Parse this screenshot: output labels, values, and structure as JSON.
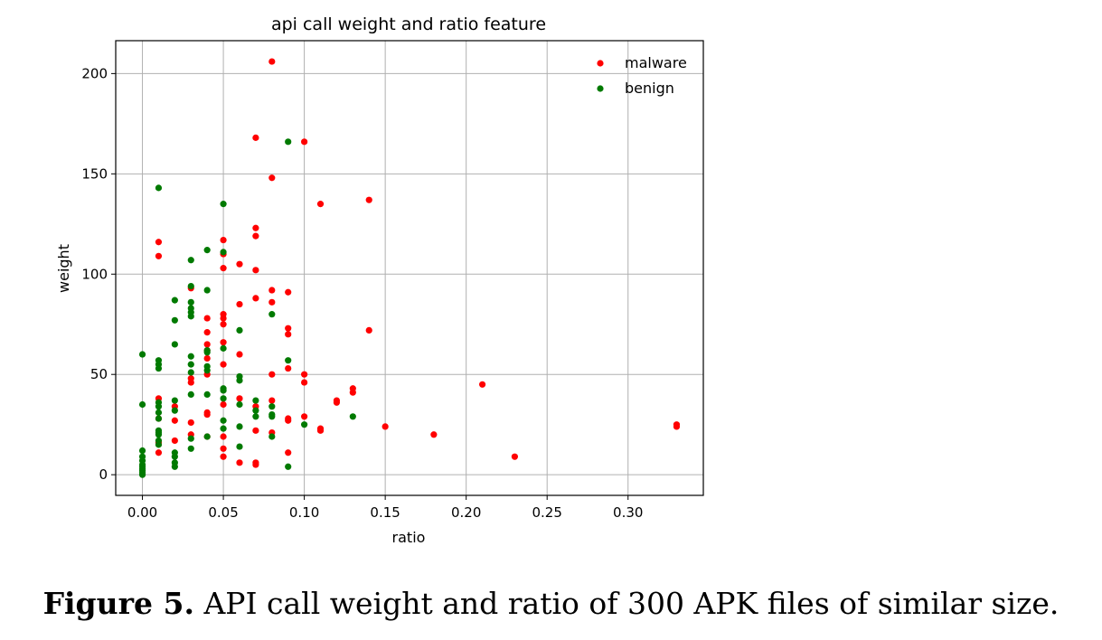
{
  "caption": {
    "label": "Figure 5.",
    "text": "API call weight and ratio of 300 APK files of similar size."
  },
  "chart_data": {
    "type": "scatter",
    "title": "api call weight and ratio feature",
    "xlabel": "ratio",
    "ylabel": "weight",
    "xlim": [
      -0.0165,
      0.3465
    ],
    "ylim": [
      -10.3,
      216.4
    ],
    "xticks": [
      0.0,
      0.05,
      0.1,
      0.15,
      0.2,
      0.25,
      0.3
    ],
    "xtick_labels": [
      "0.00",
      "0.05",
      "0.10",
      "0.15",
      "0.20",
      "0.25",
      "0.30"
    ],
    "yticks": [
      0,
      50,
      100,
      150,
      200
    ],
    "ytick_labels": [
      "0",
      "50",
      "100",
      "150",
      "200"
    ],
    "grid": true,
    "legend": "top-right",
    "series": [
      {
        "name": "malware",
        "color": "#ff0000",
        "points": [
          [
            0.08,
            206
          ],
          [
            0.07,
            168
          ],
          [
            0.1,
            166
          ],
          [
            0.08,
            148
          ],
          [
            0.14,
            137
          ],
          [
            0.11,
            135
          ],
          [
            0.07,
            123
          ],
          [
            0.07,
            119
          ],
          [
            0.05,
            117
          ],
          [
            0.01,
            116
          ],
          [
            0.05,
            110
          ],
          [
            0.01,
            109
          ],
          [
            0.06,
            105
          ],
          [
            0.05,
            103
          ],
          [
            0.07,
            102
          ],
          [
            0.08,
            92
          ],
          [
            0.09,
            91
          ],
          [
            0.07,
            88
          ],
          [
            0.08,
            86
          ],
          [
            0.06,
            85
          ],
          [
            0.03,
            93
          ],
          [
            0.05,
            80
          ],
          [
            0.05,
            78
          ],
          [
            0.04,
            78
          ],
          [
            0.05,
            75
          ],
          [
            0.09,
            73
          ],
          [
            0.14,
            72
          ],
          [
            0.04,
            71
          ],
          [
            0.09,
            70
          ],
          [
            0.05,
            66
          ],
          [
            0.04,
            65
          ],
          [
            0.04,
            62
          ],
          [
            0.06,
            60
          ],
          [
            0.04,
            58
          ],
          [
            0.05,
            55
          ],
          [
            0.09,
            53
          ],
          [
            0.08,
            50
          ],
          [
            0.1,
            50
          ],
          [
            0.04,
            50
          ],
          [
            0.03,
            48
          ],
          [
            0.1,
            46
          ],
          [
            0.03,
            46
          ],
          [
            0.21,
            45
          ],
          [
            0.13,
            43
          ],
          [
            0.13,
            41
          ],
          [
            0.06,
            38
          ],
          [
            0.01,
            38
          ],
          [
            0.08,
            37
          ],
          [
            0.12,
            37
          ],
          [
            0.12,
            36
          ],
          [
            0.05,
            35
          ],
          [
            0.07,
            34
          ],
          [
            0.02,
            34
          ],
          [
            0.04,
            31
          ],
          [
            0.04,
            30
          ],
          [
            0.1,
            29
          ],
          [
            0.09,
            28
          ],
          [
            0.01,
            28
          ],
          [
            0.02,
            27
          ],
          [
            0.09,
            27
          ],
          [
            0.03,
            26
          ],
          [
            0.33,
            25
          ],
          [
            0.33,
            24
          ],
          [
            0.15,
            24
          ],
          [
            0.11,
            23
          ],
          [
            0.11,
            22
          ],
          [
            0.07,
            22
          ],
          [
            0.08,
            21
          ],
          [
            0.18,
            20
          ],
          [
            0.03,
            20
          ],
          [
            0.04,
            19
          ],
          [
            0.05,
            19
          ],
          [
            0.02,
            17
          ],
          [
            0.01,
            16
          ],
          [
            0.05,
            13
          ],
          [
            0.01,
            11
          ],
          [
            0.09,
            11
          ],
          [
            0.05,
            9
          ],
          [
            0.23,
            9
          ],
          [
            0.06,
            6
          ],
          [
            0.07,
            6
          ],
          [
            0.07,
            5
          ]
        ]
      },
      {
        "name": "benign",
        "color": "#007a00",
        "points": [
          [
            0.09,
            166
          ],
          [
            0.01,
            143
          ],
          [
            0.05,
            135
          ],
          [
            0.04,
            112
          ],
          [
            0.05,
            111
          ],
          [
            0.03,
            107
          ],
          [
            0.03,
            94
          ],
          [
            0.04,
            92
          ],
          [
            0.02,
            87
          ],
          [
            0.03,
            86
          ],
          [
            0.03,
            83
          ],
          [
            0.03,
            81
          ],
          [
            0.03,
            79
          ],
          [
            0.08,
            80
          ],
          [
            0.02,
            77
          ],
          [
            0.06,
            72
          ],
          [
            0.02,
            65
          ],
          [
            0.05,
            63
          ],
          [
            0.04,
            62
          ],
          [
            0.04,
            61
          ],
          [
            0.0,
            60
          ],
          [
            0.03,
            59
          ],
          [
            0.09,
            57
          ],
          [
            0.01,
            57
          ],
          [
            0.01,
            55
          ],
          [
            0.03,
            55
          ],
          [
            0.04,
            54
          ],
          [
            0.01,
            53
          ],
          [
            0.04,
            52
          ],
          [
            0.03,
            51
          ],
          [
            0.06,
            49
          ],
          [
            0.06,
            47
          ],
          [
            0.05,
            43
          ],
          [
            0.05,
            42
          ],
          [
            0.04,
            40
          ],
          [
            0.03,
            40
          ],
          [
            0.05,
            38
          ],
          [
            0.07,
            37
          ],
          [
            0.02,
            37
          ],
          [
            0.01,
            36
          ],
          [
            0.0,
            35
          ],
          [
            0.06,
            35
          ],
          [
            0.01,
            34
          ],
          [
            0.08,
            34
          ],
          [
            0.07,
            32
          ],
          [
            0.02,
            32
          ],
          [
            0.01,
            31
          ],
          [
            0.13,
            29
          ],
          [
            0.08,
            29
          ],
          [
            0.07,
            29
          ],
          [
            0.08,
            30
          ],
          [
            0.01,
            28
          ],
          [
            0.05,
            27
          ],
          [
            0.1,
            25
          ],
          [
            0.06,
            24
          ],
          [
            0.05,
            23
          ],
          [
            0.01,
            22
          ],
          [
            0.01,
            21
          ],
          [
            0.01,
            20
          ],
          [
            0.04,
            19
          ],
          [
            0.08,
            19
          ],
          [
            0.03,
            18
          ],
          [
            0.01,
            17
          ],
          [
            0.01,
            15
          ],
          [
            0.06,
            14
          ],
          [
            0.03,
            13
          ],
          [
            0.0,
            12
          ],
          [
            0.02,
            11
          ],
          [
            0.0,
            9
          ],
          [
            0.02,
            9
          ],
          [
            0.0,
            7
          ],
          [
            0.02,
            6
          ],
          [
            0.0,
            5
          ],
          [
            0.0,
            4
          ],
          [
            0.02,
            4
          ],
          [
            0.09,
            4
          ],
          [
            0.0,
            3
          ],
          [
            0.0,
            2
          ],
          [
            0.0,
            1
          ],
          [
            0.0,
            0
          ]
        ]
      }
    ]
  }
}
